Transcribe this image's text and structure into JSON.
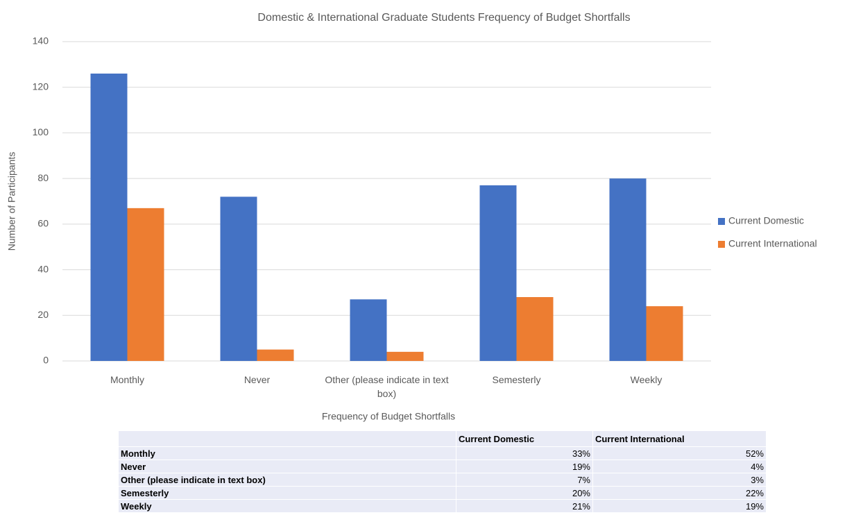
{
  "chart_data": {
    "type": "bar",
    "title": "Domestic & International Graduate Students Frequency of Budget Shortfalls",
    "x_label": "Frequency of Budget Shortfalls",
    "y_label": "Number of Participants",
    "categories": [
      "Monthly",
      "Never",
      "Other (please indicate in text box)",
      "Semesterly",
      "Weekly"
    ],
    "series": [
      {
        "name": "Current Domestic",
        "color": "#4472c4",
        "values": [
          126,
          72,
          27,
          77,
          80
        ]
      },
      {
        "name": "Current International",
        "color": "#ed7d31",
        "values": [
          67,
          5,
          4,
          28,
          24
        ]
      }
    ],
    "ylim": [
      0,
      140
    ],
    "yticks": [
      0,
      20,
      40,
      60,
      80,
      100,
      120,
      140
    ],
    "grid": true,
    "legend": "right"
  },
  "table": {
    "columns": [
      "Current Domestic",
      "Current International"
    ],
    "rows": [
      {
        "label": "Monthly",
        "values": [
          "33%",
          "52%"
        ]
      },
      {
        "label": "Never",
        "values": [
          "19%",
          "4%"
        ]
      },
      {
        "label": "Other (please indicate in text box)",
        "values": [
          "7%",
          "3%"
        ]
      },
      {
        "label": "Semesterly",
        "values": [
          "20%",
          "22%"
        ]
      },
      {
        "label": "Weekly",
        "values": [
          "21%",
          "19%"
        ]
      }
    ]
  }
}
